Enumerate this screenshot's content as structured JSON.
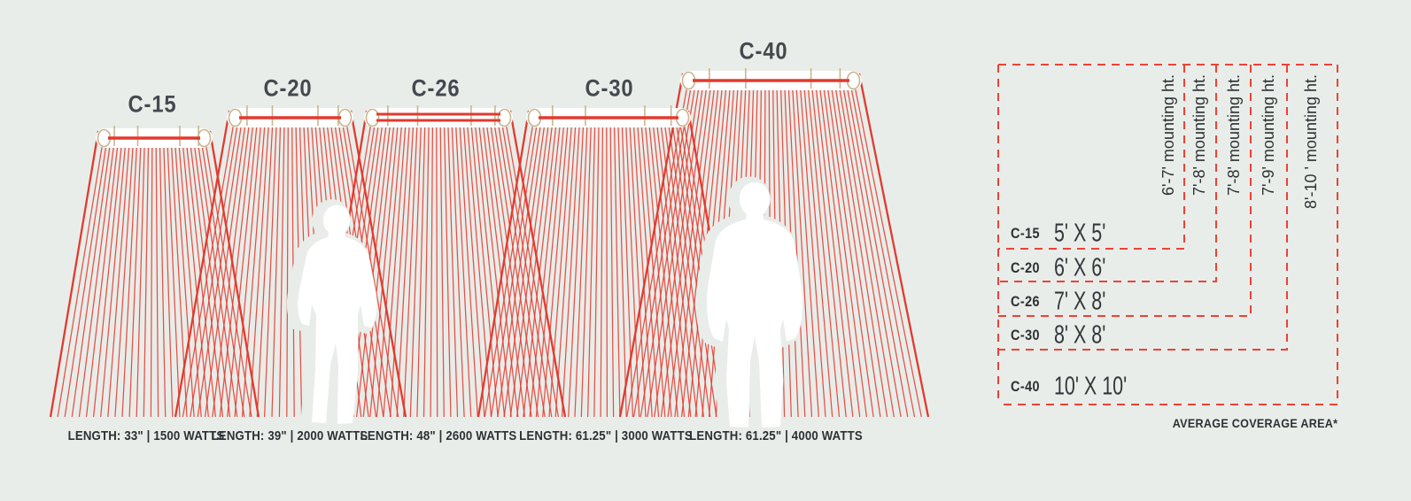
{
  "colors": {
    "background": "#e9ede9",
    "ray_red": "#e23a2f",
    "dash_red": "#ee4136",
    "heater_tan": "#c9b58f",
    "text_dark": "#2d3134",
    "title_gray": "#45494d"
  },
  "products": [
    {
      "id": "c-15",
      "label": "C-15",
      "spec": "LENGTH: 33\" | 1500 WATTS",
      "coverage": "5' X 5'",
      "mounting": "6'-7' mounting ht."
    },
    {
      "id": "c-20",
      "label": "C-20",
      "spec": "LENGTH: 39\" | 2000 WATTS",
      "coverage": "6' X 6'",
      "mounting": "7'-8' mounting ht."
    },
    {
      "id": "c-26",
      "label": "C-26",
      "spec": "LENGTH: 48\" | 2600 WATTS",
      "coverage": "7' X 8'",
      "mounting": "7'-8' mounting ht."
    },
    {
      "id": "c-30",
      "label": "C-30",
      "spec": "LENGTH: 61.25\" | 3000 WATTS",
      "coverage": "8' X 8'",
      "mounting": "7'-9' mounting ht."
    },
    {
      "id": "c-40",
      "label": "C-40",
      "spec": "LENGTH: 61.25\" | 4000 WATTS",
      "coverage": "10' X 10'",
      "mounting": "8'-10 ' mounting ht."
    }
  ],
  "chart": {
    "footnote": "AVERAGE COVERAGE AREA*"
  }
}
